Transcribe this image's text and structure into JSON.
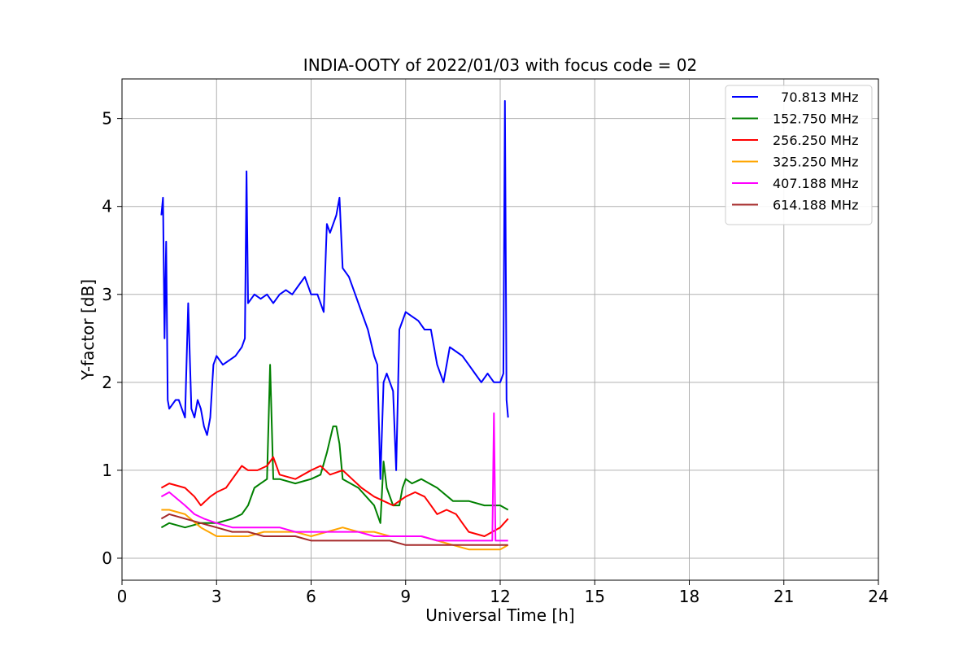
{
  "chart_data": {
    "type": "line",
    "title": "INDIA-OOTY of 2022/01/03 with focus code = 02",
    "xlabel": "Universal Time [h]",
    "ylabel": "Y-factor [dB]",
    "xlim": [
      0,
      24
    ],
    "ylim": [
      -0.25,
      5.45
    ],
    "xticks": [
      0,
      3,
      6,
      9,
      12,
      15,
      18,
      21,
      24
    ],
    "yticks": [
      0,
      1,
      2,
      3,
      4,
      5
    ],
    "grid": true,
    "legend_position": "top-right",
    "series": [
      {
        "name": "  70.813 MHz",
        "color": "#0000ff",
        "x": [
          1.25,
          1.3,
          1.35,
          1.4,
          1.45,
          1.5,
          1.6,
          1.7,
          1.8,
          1.9,
          2.0,
          2.1,
          2.2,
          2.3,
          2.4,
          2.5,
          2.6,
          2.7,
          2.8,
          2.9,
          3.0,
          3.2,
          3.4,
          3.6,
          3.8,
          3.9,
          3.95,
          4.0,
          4.2,
          4.4,
          4.6,
          4.8,
          5.0,
          5.2,
          5.4,
          5.6,
          5.8,
          6.0,
          6.2,
          6.4,
          6.5,
          6.6,
          6.8,
          6.9,
          7.0,
          7.2,
          7.4,
          7.6,
          7.8,
          8.0,
          8.1,
          8.2,
          8.3,
          8.4,
          8.5,
          8.6,
          8.7,
          8.8,
          9.0,
          9.2,
          9.4,
          9.6,
          9.8,
          10.0,
          10.2,
          10.4,
          10.6,
          10.8,
          11.0,
          11.2,
          11.4,
          11.6,
          11.8,
          12.0,
          12.1,
          12.15,
          12.2,
          12.25
        ],
        "y": [
          3.9,
          4.1,
          2.5,
          3.6,
          1.8,
          1.7,
          1.75,
          1.8,
          1.8,
          1.7,
          1.6,
          2.9,
          1.7,
          1.6,
          1.8,
          1.7,
          1.5,
          1.4,
          1.6,
          2.2,
          2.3,
          2.2,
          2.25,
          2.3,
          2.4,
          2.5,
          4.4,
          2.9,
          3.0,
          2.95,
          3.0,
          2.9,
          3.0,
          3.05,
          3.0,
          3.1,
          3.2,
          3.0,
          3.0,
          2.8,
          3.8,
          3.7,
          3.9,
          4.1,
          3.3,
          3.2,
          3.0,
          2.8,
          2.6,
          2.3,
          2.2,
          0.9,
          2.0,
          2.1,
          2.0,
          1.9,
          1.0,
          2.6,
          2.8,
          2.75,
          2.7,
          2.6,
          2.6,
          2.2,
          2.0,
          2.4,
          2.35,
          2.3,
          2.2,
          2.1,
          2.0,
          2.1,
          2.0,
          2.0,
          2.1,
          5.2,
          1.8,
          1.6
        ]
      },
      {
        "name": "152.750 MHz",
        "color": "#008000",
        "x": [
          1.25,
          1.5,
          2.0,
          2.5,
          3.0,
          3.5,
          3.8,
          4.0,
          4.2,
          4.4,
          4.6,
          4.7,
          4.8,
          5.0,
          5.5,
          6.0,
          6.3,
          6.5,
          6.7,
          6.8,
          6.9,
          7.0,
          7.5,
          8.0,
          8.2,
          8.3,
          8.4,
          8.6,
          8.8,
          8.9,
          9.0,
          9.2,
          9.5,
          10.0,
          10.5,
          11.0,
          11.5,
          12.0,
          12.25
        ],
        "y": [
          0.35,
          0.4,
          0.35,
          0.4,
          0.4,
          0.45,
          0.5,
          0.6,
          0.8,
          0.85,
          0.9,
          2.2,
          0.9,
          0.9,
          0.85,
          0.9,
          0.95,
          1.2,
          1.5,
          1.5,
          1.3,
          0.9,
          0.8,
          0.6,
          0.4,
          1.1,
          0.8,
          0.6,
          0.6,
          0.8,
          0.9,
          0.85,
          0.9,
          0.8,
          0.65,
          0.65,
          0.6,
          0.6,
          0.55
        ]
      },
      {
        "name": "256.250 MHz",
        "color": "#ff0000",
        "x": [
          1.25,
          1.5,
          2.0,
          2.3,
          2.5,
          2.8,
          3.0,
          3.3,
          3.5,
          3.8,
          4.0,
          4.3,
          4.6,
          4.8,
          5.0,
          5.5,
          6.0,
          6.3,
          6.6,
          7.0,
          7.3,
          7.6,
          8.0,
          8.3,
          8.6,
          9.0,
          9.3,
          9.6,
          9.8,
          10.0,
          10.3,
          10.6,
          10.8,
          11.0,
          11.5,
          12.0,
          12.25
        ],
        "y": [
          0.8,
          0.85,
          0.8,
          0.7,
          0.6,
          0.7,
          0.75,
          0.8,
          0.9,
          1.05,
          1.0,
          1.0,
          1.05,
          1.15,
          0.95,
          0.9,
          1.0,
          1.05,
          0.95,
          1.0,
          0.9,
          0.8,
          0.7,
          0.65,
          0.6,
          0.7,
          0.75,
          0.7,
          0.6,
          0.5,
          0.55,
          0.5,
          0.4,
          0.3,
          0.25,
          0.35,
          0.45
        ]
      },
      {
        "name": "325.250 MHz",
        "color": "#ffa500",
        "x": [
          1.25,
          1.5,
          2.0,
          2.5,
          3.0,
          3.5,
          4.0,
          4.5,
          5.0,
          5.5,
          6.0,
          6.5,
          7.0,
          7.5,
          8.0,
          8.5,
          9.0,
          9.5,
          10.0,
          10.5,
          11.0,
          11.5,
          12.0,
          12.25
        ],
        "y": [
          0.55,
          0.55,
          0.5,
          0.35,
          0.25,
          0.25,
          0.25,
          0.3,
          0.3,
          0.3,
          0.25,
          0.3,
          0.35,
          0.3,
          0.3,
          0.25,
          0.25,
          0.25,
          0.2,
          0.15,
          0.1,
          0.1,
          0.1,
          0.15
        ]
      },
      {
        "name": "407.188 MHz",
        "color": "#ff00ff",
        "x": [
          1.25,
          1.5,
          2.0,
          2.3,
          2.6,
          3.0,
          3.5,
          4.0,
          4.5,
          5.0,
          5.5,
          6.0,
          6.5,
          7.0,
          7.5,
          8.0,
          8.5,
          9.0,
          9.5,
          10.0,
          10.5,
          11.0,
          11.5,
          11.75,
          11.8,
          11.85,
          12.0,
          12.25
        ],
        "y": [
          0.7,
          0.75,
          0.6,
          0.5,
          0.45,
          0.4,
          0.35,
          0.35,
          0.35,
          0.35,
          0.3,
          0.3,
          0.3,
          0.3,
          0.3,
          0.25,
          0.25,
          0.25,
          0.25,
          0.2,
          0.2,
          0.2,
          0.2,
          0.2,
          1.65,
          0.2,
          0.2,
          0.2
        ]
      },
      {
        "name": "614.188 MHz",
        "color": "#a52a2a",
        "x": [
          1.25,
          1.5,
          2.0,
          2.5,
          3.0,
          3.5,
          4.0,
          4.5,
          5.0,
          5.5,
          6.0,
          6.5,
          7.0,
          7.5,
          8.0,
          8.5,
          9.0,
          9.5,
          10.0,
          10.5,
          11.0,
          11.5,
          12.0,
          12.25
        ],
        "y": [
          0.45,
          0.5,
          0.45,
          0.4,
          0.35,
          0.3,
          0.3,
          0.25,
          0.25,
          0.25,
          0.2,
          0.2,
          0.2,
          0.2,
          0.2,
          0.2,
          0.15,
          0.15,
          0.15,
          0.15,
          0.15,
          0.15,
          0.15,
          0.15
        ]
      }
    ]
  }
}
